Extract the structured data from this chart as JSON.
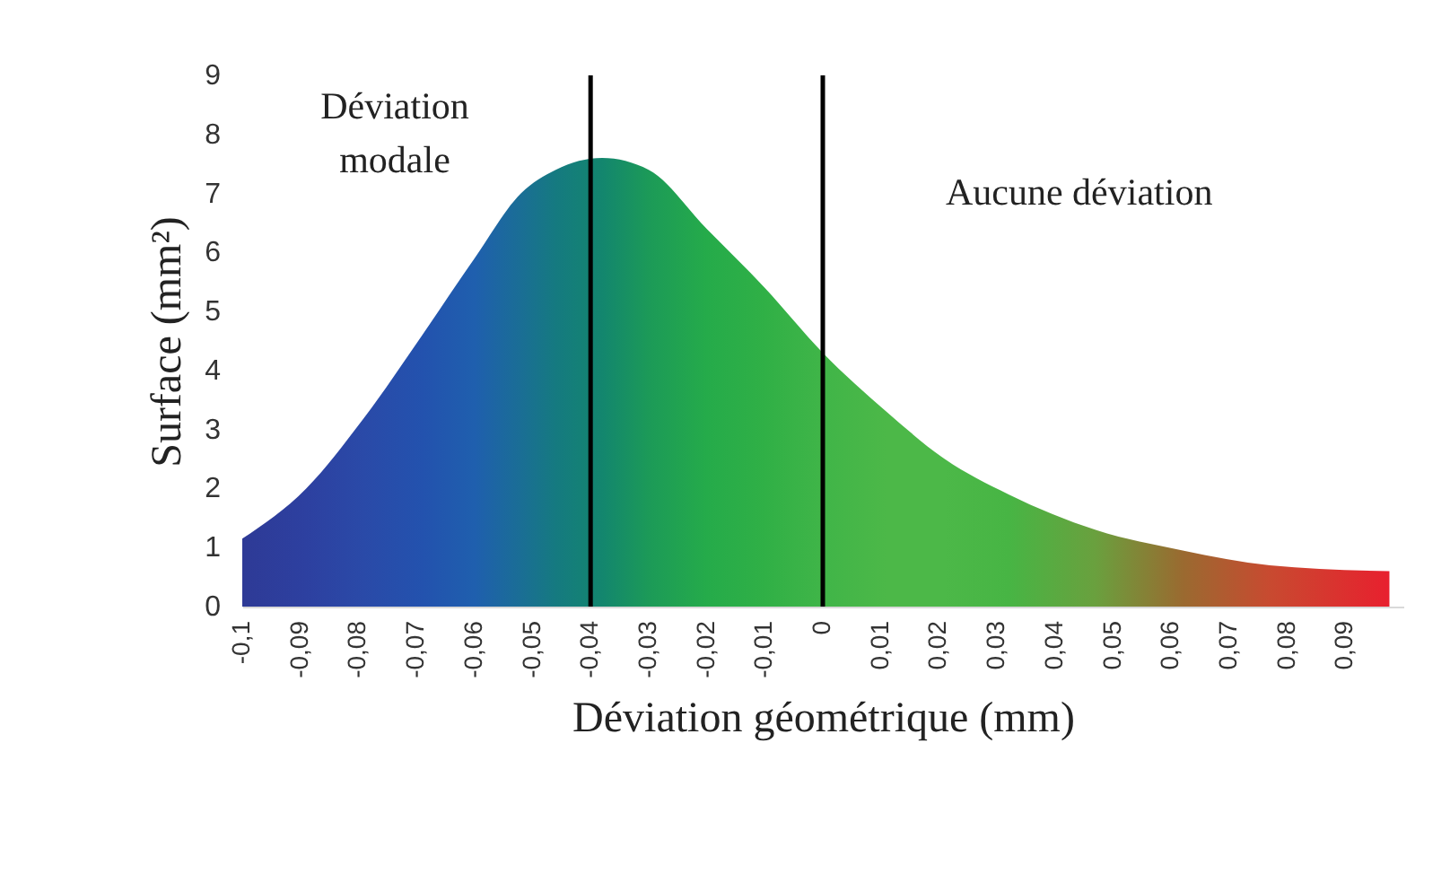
{
  "chart_data": {
    "type": "area",
    "xlabel": "Déviation géométrique (mm)",
    "ylabel": "Surface (mm²)",
    "x": [
      -0.1,
      -0.089,
      -0.079,
      -0.069,
      -0.06,
      -0.052,
      -0.046,
      -0.038,
      -0.03,
      -0.02,
      -0.01,
      0,
      0.011,
      0.021,
      0.032,
      0.047,
      0.062,
      0.077,
      0.0976
    ],
    "series": [
      {
        "values": [
          1.15,
          2.0,
          3.2,
          4.6,
          5.9,
          7.0,
          7.4,
          7.6,
          7.4,
          6.4,
          5.4,
          4.3,
          3.3,
          2.5,
          1.9,
          1.3,
          0.95,
          0.7,
          0.6
        ],
        "colors": [
          "#2e3a96",
          "#2d40a0",
          "#2a4aa8",
          "#2352ae",
          "#1f5fae",
          "#1a6e95",
          "#157a80",
          "#13866e",
          "#1c9a58",
          "#25ab4a",
          "#30b046",
          "#40b548",
          "#4cb848",
          "#4cb848",
          "#47b544",
          "#6aa03e",
          "#9a6a30",
          "#c84a30",
          "#e8202e"
        ]
      }
    ],
    "xlim": [
      -0.1,
      0.1
    ],
    "ylim": [
      0,
      9
    ],
    "xticks": [
      {
        "value": -0.1,
        "label": "-0,1"
      },
      {
        "value": -0.09,
        "label": "-0,09"
      },
      {
        "value": -0.08,
        "label": "-0,08"
      },
      {
        "value": -0.07,
        "label": "-0,07"
      },
      {
        "value": -0.06,
        "label": "-0,06"
      },
      {
        "value": -0.05,
        "label": "-0,05"
      },
      {
        "value": -0.04,
        "label": "-0,04"
      },
      {
        "value": -0.03,
        "label": "-0,03"
      },
      {
        "value": -0.02,
        "label": "-0,02"
      },
      {
        "value": -0.01,
        "label": "-0,01"
      },
      0,
      {
        "value": 0.01,
        "label": "0,01"
      },
      {
        "value": 0.02,
        "label": "0,02"
      },
      {
        "value": 0.03,
        "label": "0,03"
      },
      {
        "value": 0.04,
        "label": "0,04"
      },
      {
        "value": 0.05,
        "label": "0,05"
      },
      {
        "value": 0.06,
        "label": "0,06"
      },
      {
        "value": 0.07,
        "label": "0,07"
      },
      {
        "value": 0.08,
        "label": "0,08"
      },
      {
        "value": 0.09,
        "label": "0,09"
      }
    ],
    "yticks": [
      0,
      1,
      2,
      3,
      4,
      5,
      6,
      7,
      8,
      9
    ],
    "ref_lines": [
      {
        "axis": "x",
        "value": -0.04,
        "color": "#000000"
      },
      {
        "axis": "x",
        "value": 0,
        "color": "#000000"
      }
    ],
    "annotations": [
      "Déviation\nmodale",
      "Aucune déviation"
    ],
    "grid": false
  }
}
